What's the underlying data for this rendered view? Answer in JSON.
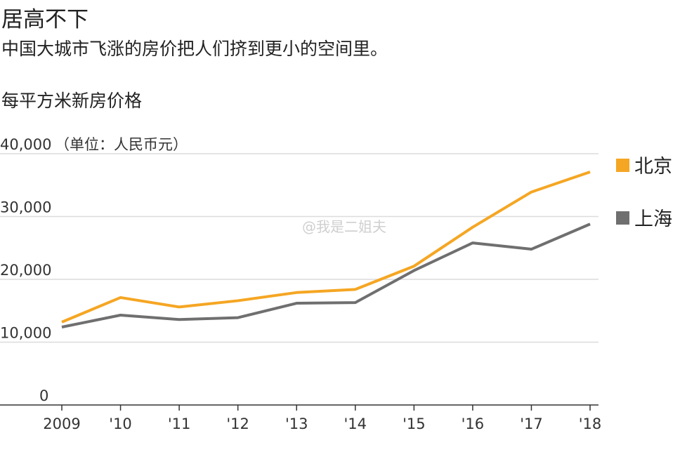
{
  "chart_data": {
    "type": "line",
    "title": "居高不下",
    "subtitle": "中国大城市飞涨的房价把人们挤到更小的空间里。",
    "chart_title": "每平方米新房价格",
    "unit_label": "（单位：人民币元）",
    "x": [
      "2009",
      "'10",
      "'11",
      "'12",
      "'13",
      "'14",
      "'15",
      "'16",
      "'17",
      "'18"
    ],
    "yticks": [
      0,
      10000,
      20000,
      30000,
      40000
    ],
    "ytick_labels": [
      "0",
      "10,000",
      "20,000",
      "30,000",
      "40,000"
    ],
    "ylim": [
      0,
      40000
    ],
    "grid": true,
    "legend_position": "right",
    "series": [
      {
        "name": "北京",
        "color": "#f5a623",
        "values": [
          13200,
          17100,
          15600,
          16600,
          17900,
          18400,
          22100,
          28300,
          33900,
          37100
        ]
      },
      {
        "name": "上海",
        "color": "#6f6f6f",
        "values": [
          12400,
          14300,
          13600,
          13900,
          16200,
          16300,
          21400,
          25800,
          24800,
          28800
        ]
      }
    ]
  },
  "watermark": "@我是二姐夫"
}
